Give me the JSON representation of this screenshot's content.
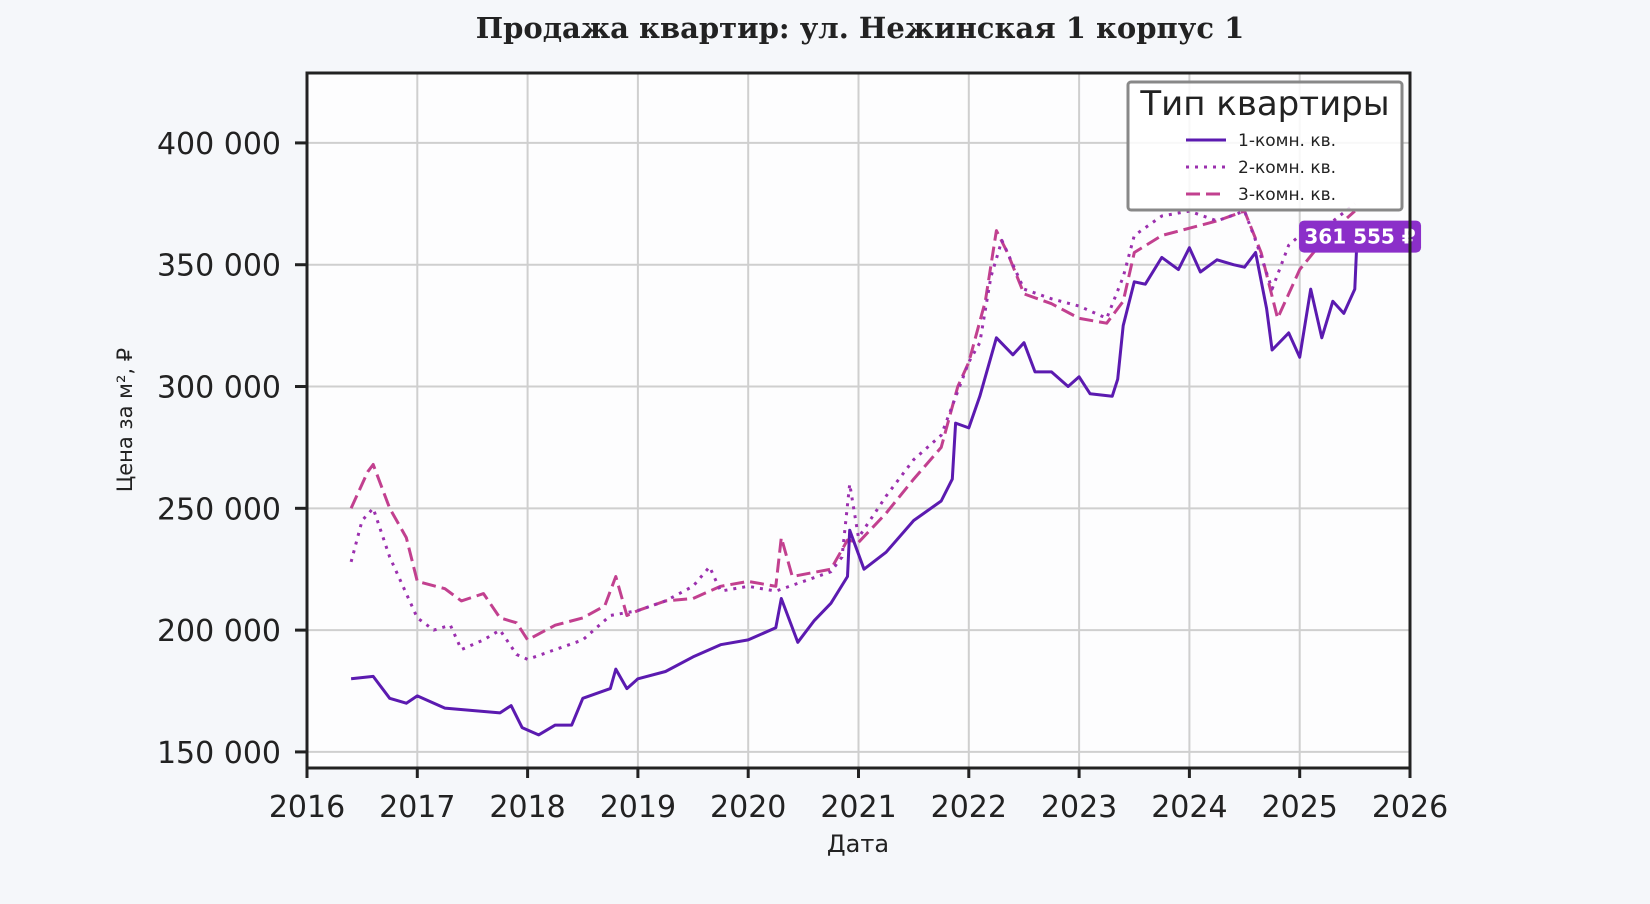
{
  "chart_data": {
    "type": "line",
    "title": "Продажа квартир: ул. Нежинская 1 корпус 1",
    "x_label": "Дата",
    "y_label": "Цена за м², ₽",
    "xlim": [
      2016,
      2026
    ],
    "xticks": [
      2016,
      2017,
      2018,
      2019,
      2020,
      2021,
      2022,
      2023,
      2024,
      2025,
      2026
    ],
    "ylim": [
      143400,
      428700
    ],
    "yticks": [
      {
        "value": 150000,
        "label": "150 000"
      },
      {
        "value": 200000,
        "label": "200 000"
      },
      {
        "value": 250000,
        "label": "250 000"
      },
      {
        "value": 300000,
        "label": "300 000"
      },
      {
        "value": 350000,
        "label": "350 000"
      },
      {
        "value": 400000,
        "label": "400 000"
      }
    ],
    "grid": true,
    "legend_title": "Тип квартиры",
    "legend_position": "upper-right",
    "series": [
      {
        "name": "1-комн. кв.",
        "color": "#5b1ab0",
        "dash": "solid",
        "x": [
          2016.4,
          2016.6,
          2016.75,
          2016.9,
          2017.0,
          2017.25,
          2017.5,
          2017.75,
          2017.85,
          2017.95,
          2018.1,
          2018.25,
          2018.4,
          2018.5,
          2018.75,
          2018.8,
          2018.9,
          2019.0,
          2019.25,
          2019.5,
          2019.75,
          2020.0,
          2020.25,
          2020.3,
          2020.45,
          2020.6,
          2020.75,
          2020.9,
          2020.92,
          2021.05,
          2021.25,
          2021.5,
          2021.75,
          2021.85,
          2021.88,
          2022.0,
          2022.1,
          2022.25,
          2022.4,
          2022.5,
          2022.6,
          2022.75,
          2022.9,
          2023.0,
          2023.1,
          2023.3,
          2023.35,
          2023.4,
          2023.5,
          2023.6,
          2023.75,
          2023.9,
          2024.0,
          2024.1,
          2024.25,
          2024.4,
          2024.5,
          2024.6,
          2024.7,
          2024.75,
          2024.9,
          2025.0,
          2025.1,
          2025.2,
          2025.3,
          2025.4,
          2025.5,
          2025.52
        ],
        "values": [
          180000,
          181000,
          172000,
          170000,
          173000,
          168000,
          167000,
          166000,
          169000,
          160000,
          157000,
          161000,
          161000,
          172000,
          176000,
          184000,
          176000,
          180000,
          183000,
          189000,
          194000,
          196000,
          201000,
          213000,
          195000,
          204000,
          211000,
          222000,
          241000,
          225000,
          232000,
          245000,
          253000,
          262000,
          285000,
          283000,
          296000,
          320000,
          313000,
          318000,
          306000,
          306000,
          300000,
          304000,
          297000,
          296000,
          303000,
          325000,
          343000,
          342000,
          353000,
          348000,
          357000,
          347000,
          352000,
          350000,
          349000,
          355000,
          332000,
          315000,
          322000,
          312000,
          340000,
          320000,
          335000,
          330000,
          340000,
          361555
        ]
      },
      {
        "name": "2-комн. кв.",
        "color": "#9b2fae",
        "dash": "dotted",
        "x": [
          2016.4,
          2016.5,
          2016.6,
          2016.75,
          2016.9,
          2017.0,
          2017.15,
          2017.3,
          2017.4,
          2017.6,
          2017.75,
          2017.9,
          2018.0,
          2018.25,
          2018.5,
          2018.75,
          2019.0,
          2019.25,
          2019.5,
          2019.65,
          2019.75,
          2020.0,
          2020.25,
          2020.5,
          2020.75,
          2020.85,
          2020.92,
          2021.0,
          2021.25,
          2021.5,
          2021.75,
          2022.0,
          2022.1,
          2022.2,
          2022.3,
          2022.5,
          2022.75,
          2023.0,
          2023.25,
          2023.4,
          2023.5,
          2023.75,
          2024.0,
          2024.25,
          2024.5,
          2024.6,
          2024.75,
          2024.9,
          2025.0,
          2025.25,
          2025.5
        ],
        "values": [
          228000,
          245000,
          250000,
          230000,
          215000,
          205000,
          200000,
          202000,
          192000,
          196000,
          200000,
          190000,
          188000,
          192000,
          196000,
          206000,
          208000,
          212000,
          218000,
          226000,
          216000,
          218000,
          216000,
          220000,
          224000,
          230000,
          260000,
          238000,
          255000,
          270000,
          280000,
          310000,
          318000,
          345000,
          360000,
          340000,
          336000,
          333000,
          328000,
          345000,
          362000,
          370000,
          372000,
          368000,
          372000,
          360000,
          340000,
          358000,
          362000,
          366000,
          375000
        ]
      },
      {
        "name": "3-комн. кв.",
        "color": "#c2408f",
        "dash": "dashed",
        "x": [
          2016.4,
          2016.55,
          2016.6,
          2016.75,
          2016.9,
          2017.0,
          2017.25,
          2017.4,
          2017.6,
          2017.75,
          2017.9,
          2018.0,
          2018.25,
          2018.5,
          2018.7,
          2018.8,
          2018.9,
          2019.0,
          2019.25,
          2019.5,
          2019.75,
          2020.0,
          2020.25,
          2020.3,
          2020.4,
          2020.75,
          2020.9,
          2021.0,
          2021.25,
          2021.5,
          2021.75,
          2021.9,
          2022.0,
          2022.15,
          2022.25,
          2022.35,
          2022.5,
          2022.75,
          2023.0,
          2023.25,
          2023.4,
          2023.5,
          2023.75,
          2024.0,
          2024.25,
          2024.5,
          2024.65,
          2024.8,
          2024.9,
          2025.0,
          2025.25,
          2025.5
        ],
        "values": [
          250000,
          265000,
          268000,
          250000,
          238000,
          220000,
          217000,
          212000,
          215000,
          205000,
          203000,
          196000,
          202000,
          205000,
          210000,
          222000,
          206000,
          208000,
          212000,
          213000,
          218000,
          220000,
          218000,
          238000,
          222000,
          225000,
          237000,
          236000,
          248000,
          262000,
          275000,
          300000,
          310000,
          335000,
          364000,
          355000,
          338000,
          334000,
          328000,
          326000,
          335000,
          355000,
          362000,
          365000,
          368000,
          372000,
          355000,
          328000,
          338000,
          348000,
          362000,
          372000
        ]
      }
    ],
    "annotations": [
      {
        "text": "361 555 ₽",
        "x": 2025.52,
        "value": 361555,
        "color": "#8b2fc9"
      }
    ]
  }
}
